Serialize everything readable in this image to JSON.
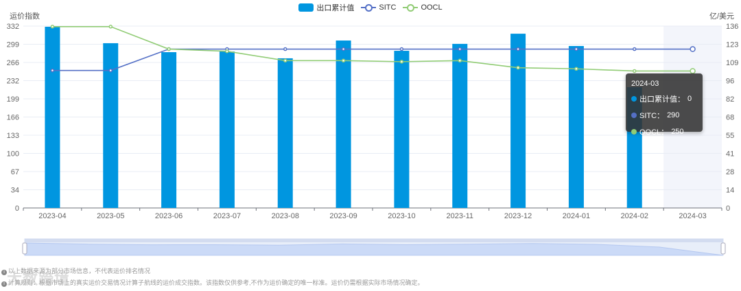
{
  "legend": {
    "items": [
      {
        "label": "出口累计值",
        "type": "bar",
        "color": "#0096e0"
      },
      {
        "label": "SITC",
        "type": "line",
        "color": "#5470c6"
      },
      {
        "label": "OOCL",
        "type": "line",
        "color": "#91cc75"
      }
    ]
  },
  "axes": {
    "left_title": "运价指数",
    "right_title": "亿/美元",
    "left_ticks": [
      "0",
      "34",
      "67",
      "100",
      "133",
      "166",
      "199",
      "232",
      "266",
      "299",
      "332"
    ],
    "right_ticks": [
      "0",
      "14",
      "28",
      "41",
      "55",
      "68",
      "82",
      "96",
      "109",
      "123",
      "136"
    ]
  },
  "tooltip": {
    "title": "2024-03",
    "rows": [
      {
        "label": "出口累计值：",
        "value": "0",
        "color": "#0096e0"
      },
      {
        "label": "SITC：",
        "value": "290",
        "color": "#5470c6"
      },
      {
        "label": "OOCL：",
        "value": "250",
        "color": "#91cc75"
      }
    ]
  },
  "footer": {
    "note1": "以上数据来源为部分市场信息，不代表运价排名情况",
    "note2": "计算规则：根据市场上的真实运价交易情况计算子航线的运价成交指数。该指数仅供参考,不作为运价确定的唯一标准。运价仍需根据实际市场情况确定。",
    "watermark": "大数跨境"
  },
  "colors": {
    "bar": "#0096e0",
    "sitc": "#5470c6",
    "oocl": "#91cc75",
    "grid": "#e8ecf4",
    "highlight": "#f3f5fb"
  },
  "chart_data": {
    "type": "bar",
    "title": "",
    "categories": [
      "2023-04",
      "2023-05",
      "2023-06",
      "2023-07",
      "2023-08",
      "2023-09",
      "2023-10",
      "2023-11",
      "2023-12",
      "2024-01",
      "2024-02",
      "2024-03"
    ],
    "series": [
      {
        "name": "出口累计值",
        "type": "bar",
        "axis": "right",
        "values": [
          135.5,
          123.2,
          116.5,
          117.0,
          111.9,
          125.2,
          117.5,
          122.7,
          130.3,
          121.1,
          90.3,
          0
        ]
      },
      {
        "name": "SITC",
        "type": "line",
        "axis": "left",
        "values": [
          251,
          251,
          290,
          290,
          290,
          290,
          290,
          290,
          290,
          290,
          290,
          290
        ]
      },
      {
        "name": "OOCL",
        "type": "line",
        "axis": "left",
        "values": [
          331,
          331,
          290,
          286,
          269,
          269,
          267,
          269,
          256,
          254,
          250,
          250
        ]
      }
    ],
    "ylabel": "运价指数",
    "y2label": "亿/美元",
    "ylim": [
      0,
      332
    ],
    "y2lim": [
      0,
      136
    ],
    "grid": true,
    "legend_position": "top",
    "highlighted_category": "2024-03"
  }
}
